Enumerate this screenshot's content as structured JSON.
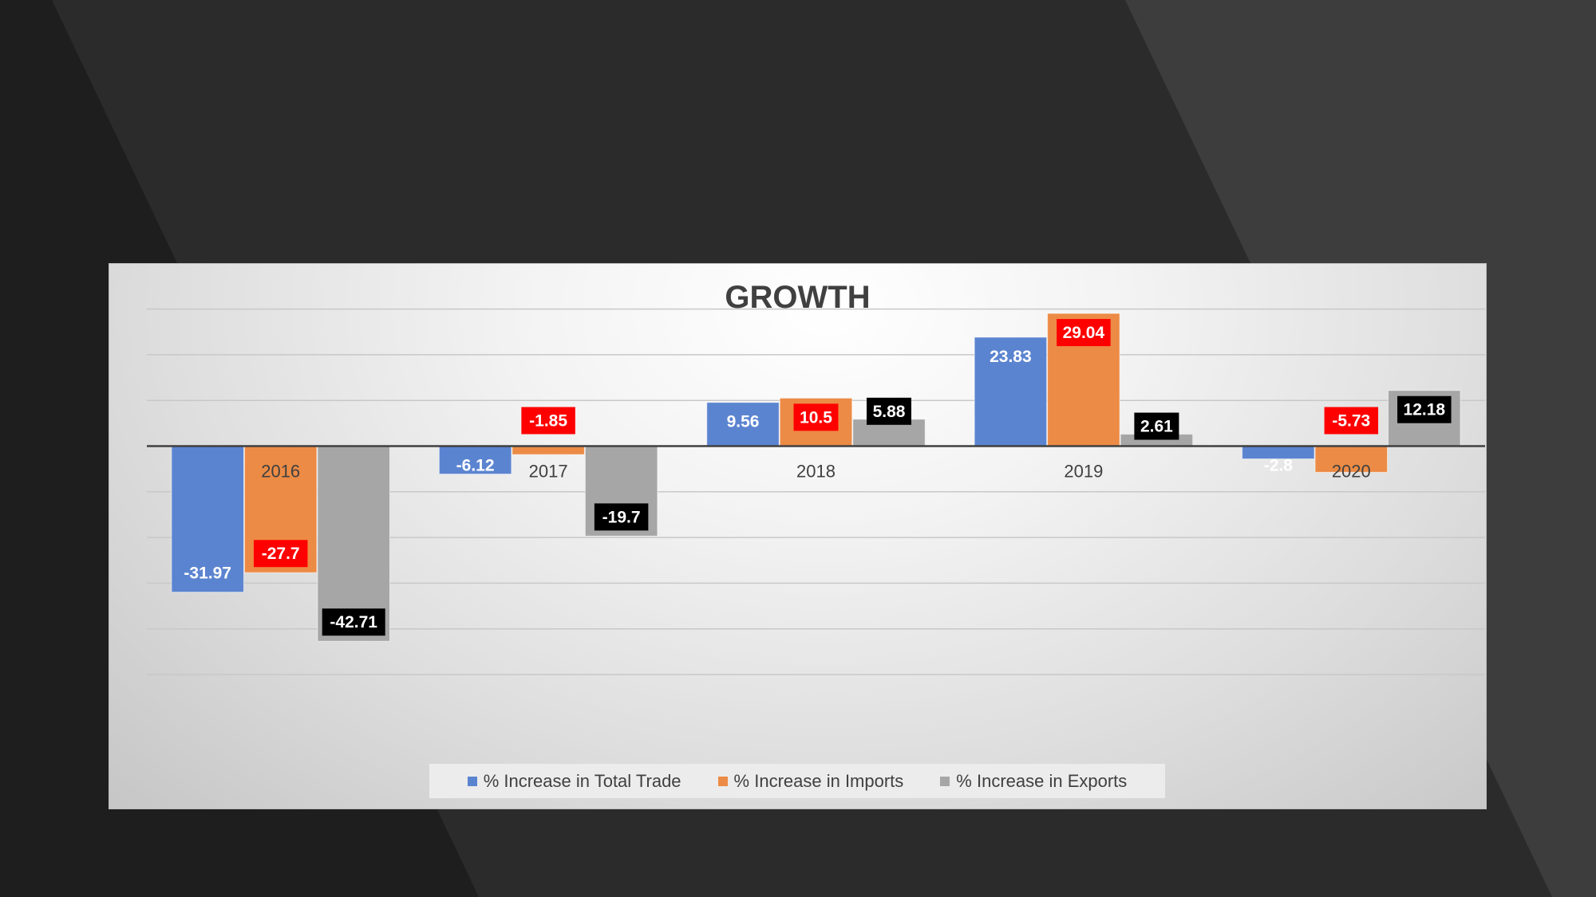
{
  "chart_data": {
    "type": "bar",
    "title": "GROWTH",
    "categories": [
      "2016",
      "2017",
      "2018",
      "2019",
      "2020"
    ],
    "series": [
      {
        "name": "% Increase in Total Trade",
        "values": [
          -31.97,
          -6.12,
          9.56,
          23.83,
          -2.8
        ],
        "color": "#5b84d0",
        "label_bg": "",
        "label_color": "#ffffff"
      },
      {
        "name": "% Increase in Imports",
        "values": [
          -27.7,
          -1.85,
          10.5,
          29.04,
          -5.73
        ],
        "color": "#ec8b45",
        "label_bg": "#ff0000",
        "label_color": "#ffffff"
      },
      {
        "name": "% Increase in Exports",
        "values": [
          -42.71,
          -19.7,
          5.88,
          2.61,
          12.18
        ],
        "color": "#a6a6a6",
        "label_bg": "#000000",
        "label_color": "#ffffff"
      }
    ],
    "ylim": [
      -50,
      30
    ],
    "grid": true,
    "legend_position": "bottom"
  }
}
